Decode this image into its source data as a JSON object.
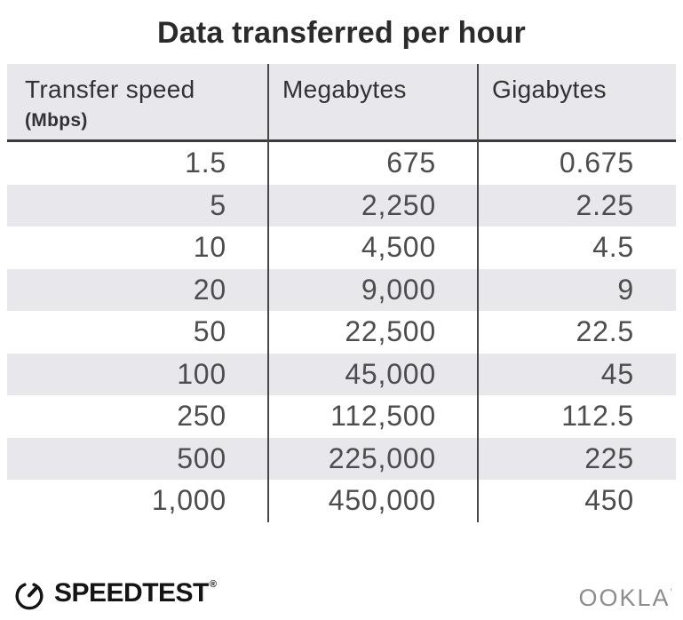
{
  "title": "Data transferred per hour",
  "table": {
    "header": {
      "col1_label": "Transfer speed",
      "col1_sublabel": "(Mbps)",
      "col2_label": "Megabytes",
      "col3_label": "Gigabytes"
    },
    "rows": [
      [
        "1.5",
        "675",
        "0.675"
      ],
      [
        "5",
        "2,250",
        "2.25"
      ],
      [
        "10",
        "4,500",
        "4.5"
      ],
      [
        "20",
        "9,000",
        "9"
      ],
      [
        "50",
        "22,500",
        "22.5"
      ],
      [
        "100",
        "45,000",
        "45"
      ],
      [
        "250",
        "112,500",
        "112.5"
      ],
      [
        "500",
        "225,000",
        "225"
      ],
      [
        "1,000",
        "450,000",
        "450"
      ]
    ]
  },
  "footer": {
    "speedtest_text": "SPEEDTEST",
    "speedtest_trademark": "®",
    "ookla_text": "OOKLA",
    "ookla_trademark": "’"
  },
  "colors": {
    "header_bg": "#e8e8ec",
    "row_shade": "#e8e8ec",
    "column_divider": "#47474a",
    "header_rule": "#3b3b3d",
    "title_text": "#2b2b2b",
    "number_text": "#4d4d4f",
    "speedtest_black": "#141414",
    "ookla_gray": "#8d8d8d"
  },
  "chart_data": {
    "type": "table",
    "title": "Data transferred per hour",
    "columns": [
      "Transfer speed (Mbps)",
      "Megabytes",
      "Gigabytes"
    ],
    "rows": [
      [
        1.5,
        675,
        0.675
      ],
      [
        5,
        2250,
        2.25
      ],
      [
        10,
        4500,
        4.5
      ],
      [
        20,
        9000,
        9
      ],
      [
        50,
        22500,
        22.5
      ],
      [
        100,
        45000,
        45
      ],
      [
        250,
        112500,
        112.5
      ],
      [
        500,
        225000,
        225
      ],
      [
        1000,
        450000,
        450
      ]
    ]
  }
}
